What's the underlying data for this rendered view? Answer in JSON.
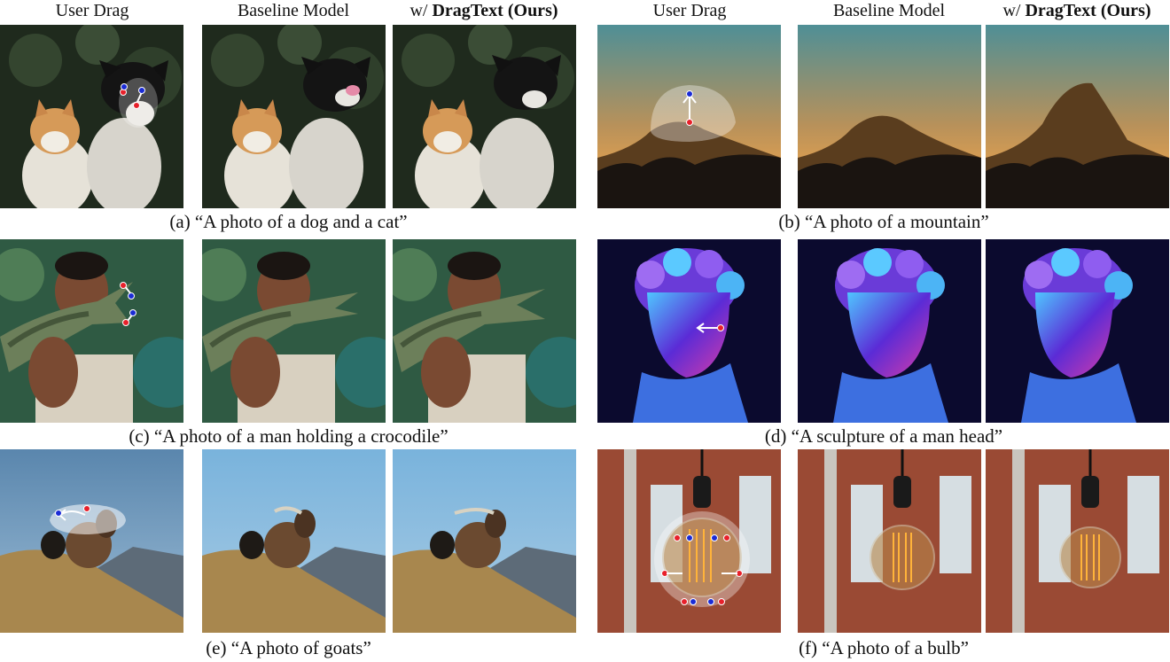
{
  "column_headers": [
    {
      "plain": "User Drag",
      "bold": ""
    },
    {
      "plain": "Baseline Model",
      "bold": ""
    },
    {
      "plain": "w/ ",
      "bold": "DragText (Ours)"
    },
    {
      "plain": "User Drag",
      "bold": ""
    },
    {
      "plain": "Baseline Model",
      "bold": ""
    },
    {
      "plain": "w/ ",
      "bold": "DragText (Ours)"
    }
  ],
  "captions": {
    "a": "(a) “A photo of a dog and a cat”",
    "b": "(b) “A photo of a mountain”",
    "c": "(c) “A photo of a man holding a crocodile”",
    "d": "(d) “A sculpture of a man head”",
    "e": "(e) “A photo of goats”",
    "f": "(f) “A photo of a bulb”"
  },
  "colors": {
    "handle_point": "#e8202a",
    "target_point": "#1a2bd6",
    "drag_arrow": "#ffffff"
  }
}
